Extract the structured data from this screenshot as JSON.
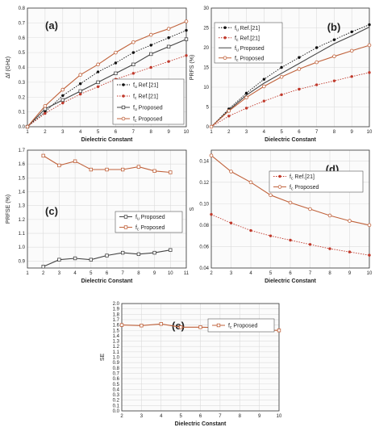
{
  "chart_data": [
    {
      "type": "line",
      "panel_label": "(a)",
      "xlabel": "Dielectric Constant",
      "ylabel": "Δf (GHz)",
      "xlim": [
        1,
        10
      ],
      "ylim": [
        0,
        0.8
      ],
      "xticks": [
        1,
        2,
        3,
        4,
        5,
        6,
        7,
        8,
        9,
        10
      ],
      "yticks": [
        0,
        0.1,
        0.2,
        0.3,
        0.4,
        0.5,
        0.6,
        0.7,
        0.8
      ],
      "ytick_decimals": 1,
      "grid": true,
      "legend": "bottom-right",
      "x": [
        1,
        2,
        3,
        4,
        5,
        6,
        7,
        8,
        9,
        10
      ],
      "series": [
        {
          "name": "fᵤ Ref.[21]",
          "sub": "u",
          "label": "Ref.[21]",
          "color": "#111111",
          "marker": "dot",
          "dashed": true,
          "values": [
            0,
            0.1,
            0.21,
            0.29,
            0.37,
            0.43,
            0.5,
            0.55,
            0.6,
            0.65
          ]
        },
        {
          "name": "fᵭ Ref.[21]",
          "sub": "c",
          "label": "Ref.[21]",
          "color": "#c0392b",
          "marker": "dot",
          "dashed": true,
          "values": [
            0,
            0.09,
            0.16,
            0.22,
            0.27,
            0.32,
            0.36,
            0.4,
            0.44,
            0.48
          ]
        },
        {
          "name": "fᵤ Proposed",
          "sub": "u",
          "label": "Proposed",
          "color": "#444444",
          "marker": "open-square",
          "dashed": false,
          "values": [
            0,
            0.12,
            0.18,
            0.24,
            0.3,
            0.36,
            0.42,
            0.49,
            0.54,
            0.59
          ]
        },
        {
          "name": "fᵭ Proposed",
          "sub": "c",
          "label": "Proposed",
          "color": "#c0623b",
          "marker": "open-circle",
          "dashed": false,
          "values": [
            0,
            0.14,
            0.25,
            0.35,
            0.42,
            0.5,
            0.57,
            0.62,
            0.66,
            0.71
          ]
        }
      ]
    },
    {
      "type": "line",
      "panel_label": "(b)",
      "xlabel": "Dielectric Constant",
      "ylabel": "PRFS (%)",
      "xlim": [
        1,
        10
      ],
      "ylim": [
        0,
        30
      ],
      "xticks": [
        1,
        2,
        3,
        4,
        5,
        6,
        7,
        8,
        9,
        10
      ],
      "yticks": [
        0,
        5,
        10,
        15,
        20,
        25,
        30
      ],
      "ytick_decimals": 0,
      "grid": true,
      "legend": "top-left",
      "x": [
        1,
        2,
        3,
        4,
        5,
        6,
        7,
        8,
        9,
        10
      ],
      "series": [
        {
          "name": "fᵤ Ref.[21]",
          "sub": "u",
          "label": "Ref.[21]",
          "color": "#111111",
          "marker": "dot",
          "dashed": true,
          "values": [
            0,
            4.5,
            8.5,
            12,
            15,
            17.5,
            20,
            22,
            24,
            25.8
          ]
        },
        {
          "name": "fᵭ Ref.[21]",
          "sub": "c",
          "label": "Ref.[21]",
          "color": "#c0392b",
          "marker": "dot",
          "dashed": true,
          "values": [
            0,
            2.7,
            4.7,
            6.5,
            8.1,
            9.5,
            10.6,
            11.6,
            12.7,
            13.7
          ]
        },
        {
          "name": "fᵤ Proposed",
          "sub": "u",
          "label": "Proposed",
          "color": "#444444",
          "marker": "none",
          "dashed": false,
          "values": [
            0,
            4.2,
            8,
            11,
            13.5,
            16,
            18.5,
            21,
            23,
            25.2
          ]
        },
        {
          "name": "fᵭ Proposed",
          "sub": "c",
          "label": "Proposed",
          "color": "#c0623b",
          "marker": "open-circle",
          "dashed": false,
          "values": [
            0,
            4.0,
            7.4,
            10.2,
            12.6,
            14.6,
            16.3,
            17.8,
            19.2,
            20.6
          ]
        }
      ]
    },
    {
      "type": "line",
      "panel_label": "(c)",
      "xlabel": "Dielectric Constant",
      "ylabel": "PRFSE (%)",
      "xlim": [
        1,
        11
      ],
      "ylim": [
        0.85,
        1.7
      ],
      "xticks": [
        1,
        2,
        3,
        4,
        5,
        6,
        7,
        8,
        9,
        10,
        11
      ],
      "yticks": [
        0.9,
        1.0,
        1.1,
        1.2,
        1.3,
        1.4,
        1.5,
        1.6,
        1.7
      ],
      "ytick_decimals": 1,
      "grid": true,
      "legend": "middle-right",
      "x": [
        2,
        3,
        4,
        5,
        6,
        7,
        8,
        9,
        10
      ],
      "series": [
        {
          "name": "fᵤ Proposed",
          "sub": "u",
          "label": "Proposed",
          "color": "#444444",
          "marker": "open-square",
          "dashed": false,
          "values": [
            0.86,
            0.91,
            0.92,
            0.91,
            0.94,
            0.96,
            0.95,
            0.96,
            0.98
          ]
        },
        {
          "name": "fᵭ Proposed",
          "sub": "c",
          "label": "Proposed",
          "color": "#c0623b",
          "marker": "open-square",
          "dashed": false,
          "values": [
            1.66,
            1.59,
            1.62,
            1.56,
            1.56,
            1.56,
            1.58,
            1.55,
            1.54
          ]
        }
      ]
    },
    {
      "type": "line",
      "panel_label": "(d)",
      "xlabel": "Dielectric Constant",
      "ylabel": "S",
      "xlim": [
        2,
        10
      ],
      "ylim": [
        0.04,
        0.15
      ],
      "xticks": [
        2,
        3,
        4,
        5,
        6,
        7,
        8,
        9,
        10
      ],
      "yticks": [
        0.04,
        0.06,
        0.08,
        0.1,
        0.12,
        0.14
      ],
      "ytick_decimals": 2,
      "grid": true,
      "legend": "top-right",
      "x": [
        2,
        3,
        4,
        5,
        6,
        7,
        8,
        9,
        10
      ],
      "series": [
        {
          "name": "fᵭ Ref.[21]",
          "sub": "c",
          "label": "Ref.[21]",
          "color": "#c0392b",
          "marker": "dot",
          "dashed": true,
          "values": [
            0.09,
            0.082,
            0.075,
            0.07,
            0.066,
            0.062,
            0.058,
            0.055,
            0.052
          ]
        },
        {
          "name": "fᵭ Proposed",
          "sub": "c",
          "label": "Proposed",
          "color": "#c0623b",
          "marker": "open-circle",
          "dashed": false,
          "values": [
            0.145,
            0.13,
            0.12,
            0.108,
            0.101,
            0.095,
            0.089,
            0.084,
            0.08
          ]
        }
      ]
    },
    {
      "type": "line",
      "panel_label": "(e)",
      "xlabel": "Dielectric Constant",
      "ylabel": "SE",
      "xlim": [
        2,
        10
      ],
      "ylim": [
        0,
        2.0
      ],
      "xticks": [
        2,
        3,
        4,
        5,
        6,
        7,
        8,
        9,
        10
      ],
      "yticks": [
        0,
        0.1,
        0.2,
        0.3,
        0.4,
        0.5,
        0.6,
        0.7,
        0.8,
        0.9,
        1.0,
        1.1,
        1.2,
        1.3,
        1.4,
        1.5,
        1.6,
        1.7,
        1.8,
        1.9,
        2.0
      ],
      "ytick_decimals": 1,
      "grid": true,
      "legend": "top-right",
      "x": [
        2,
        3,
        4,
        5,
        6,
        7,
        8,
        9,
        10
      ],
      "series": [
        {
          "name": "fᵭ Proposed",
          "sub": "c",
          "label": "Proposed",
          "color": "#c0623b",
          "marker": "open-square",
          "dashed": false,
          "values": [
            1.6,
            1.59,
            1.62,
            1.56,
            1.56,
            1.55,
            1.52,
            1.51,
            1.5
          ]
        }
      ]
    }
  ]
}
